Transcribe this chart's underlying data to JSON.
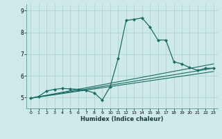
{
  "xlabel": "Humidex (Indice chaleur)",
  "ylabel": "",
  "bg_color": "#ceeae8",
  "grid_color": "#b0d4d0",
  "line_color": "#1a6b63",
  "xlim": [
    -0.5,
    23.5
  ],
  "ylim": [
    4.5,
    9.3
  ],
  "yticks": [
    5,
    6,
    7,
    8,
    9
  ],
  "xticks": [
    0,
    1,
    2,
    3,
    4,
    5,
    6,
    7,
    8,
    9,
    10,
    11,
    12,
    13,
    14,
    15,
    16,
    17,
    18,
    19,
    20,
    21,
    22,
    23
  ],
  "main_line": {
    "x": [
      0,
      1,
      2,
      3,
      4,
      5,
      6,
      7,
      8,
      9,
      10,
      11,
      12,
      13,
      14,
      15,
      16,
      17,
      18,
      19,
      20,
      21,
      22,
      23
    ],
    "y": [
      4.97,
      5.05,
      5.3,
      5.38,
      5.42,
      5.4,
      5.38,
      5.32,
      5.22,
      4.88,
      5.5,
      6.8,
      8.55,
      8.6,
      8.67,
      8.25,
      7.65,
      7.65,
      6.65,
      6.55,
      6.38,
      6.25,
      6.35,
      6.35
    ]
  },
  "straight_lines": [
    {
      "x": [
        0,
        23
      ],
      "y": [
        4.97,
        6.55
      ]
    },
    {
      "x": [
        0,
        23
      ],
      "y": [
        4.97,
        6.35
      ]
    },
    {
      "x": [
        0,
        23
      ],
      "y": [
        4.97,
        6.2
      ]
    }
  ]
}
